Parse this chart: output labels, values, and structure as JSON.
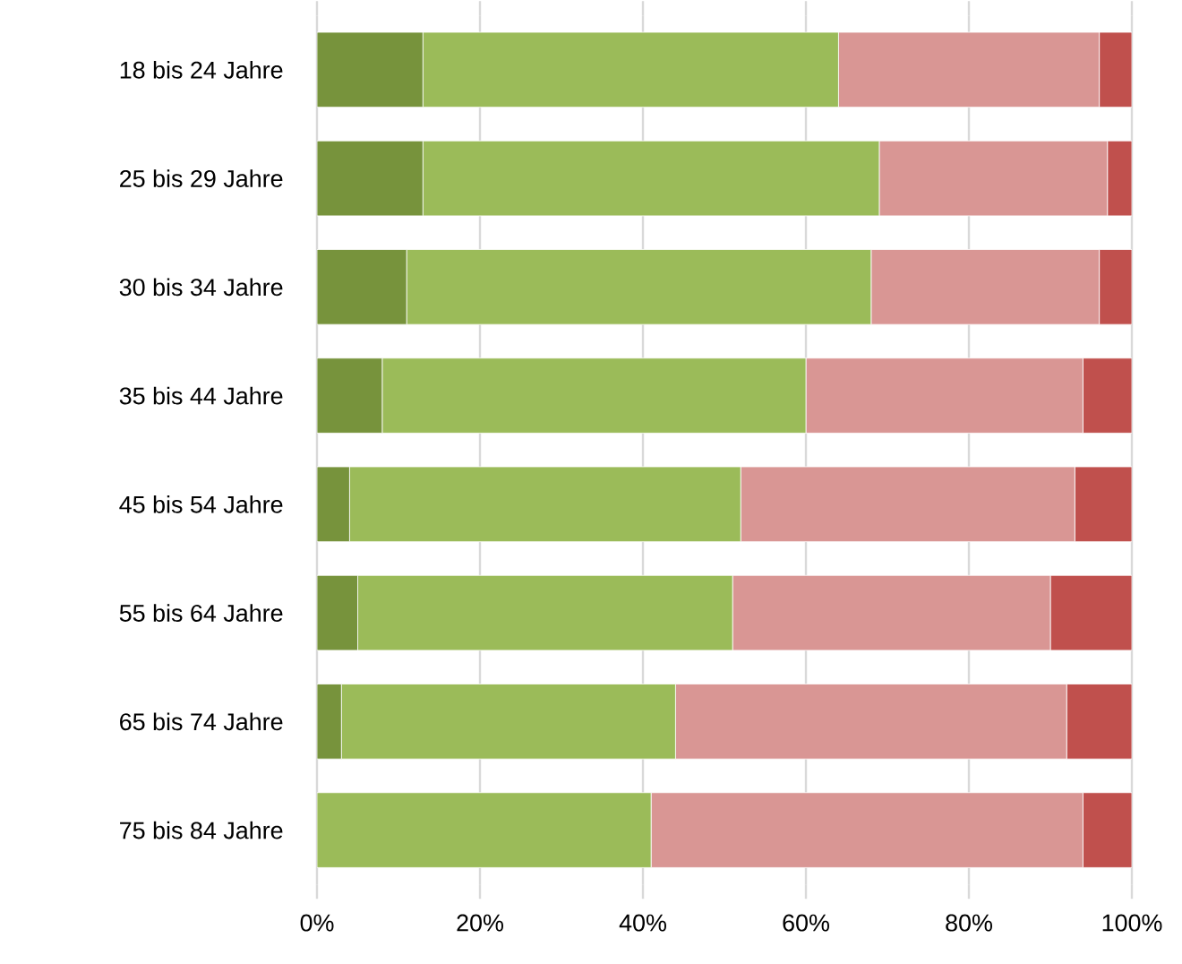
{
  "chart_data": {
    "type": "bar",
    "orientation": "horizontal",
    "stacked": true,
    "grid": "x",
    "categories": [
      "18 bis 24 Jahre",
      "25 bis 29 Jahre",
      "30 bis 34 Jahre",
      "35 bis 44 Jahre",
      "45 bis 54 Jahre",
      "55 bis 64 Jahre",
      "65 bis 74 Jahre",
      "75 bis 84 Jahre"
    ],
    "series": [
      {
        "color": "#77933c",
        "values": [
          13,
          13,
          11,
          8,
          4,
          5,
          3,
          0
        ]
      },
      {
        "color": "#9bbb59",
        "values": [
          51,
          56,
          57,
          52,
          48,
          46,
          41,
          41
        ]
      },
      {
        "color": "#d99694",
        "values": [
          32,
          28,
          28,
          34,
          41,
          39,
          48,
          53
        ]
      },
      {
        "color": "#c0504d",
        "values": [
          4,
          3,
          4,
          6,
          7,
          10,
          8,
          6
        ]
      }
    ],
    "xlim": [
      0,
      100
    ],
    "xticks": [
      {
        "value": 0,
        "label": "0%"
      },
      {
        "value": 20,
        "label": "20%"
      },
      {
        "value": 40,
        "label": "40%"
      },
      {
        "value": 60,
        "label": "60%"
      },
      {
        "value": 80,
        "label": "80%"
      },
      {
        "value": 100,
        "label": "100%"
      }
    ]
  }
}
